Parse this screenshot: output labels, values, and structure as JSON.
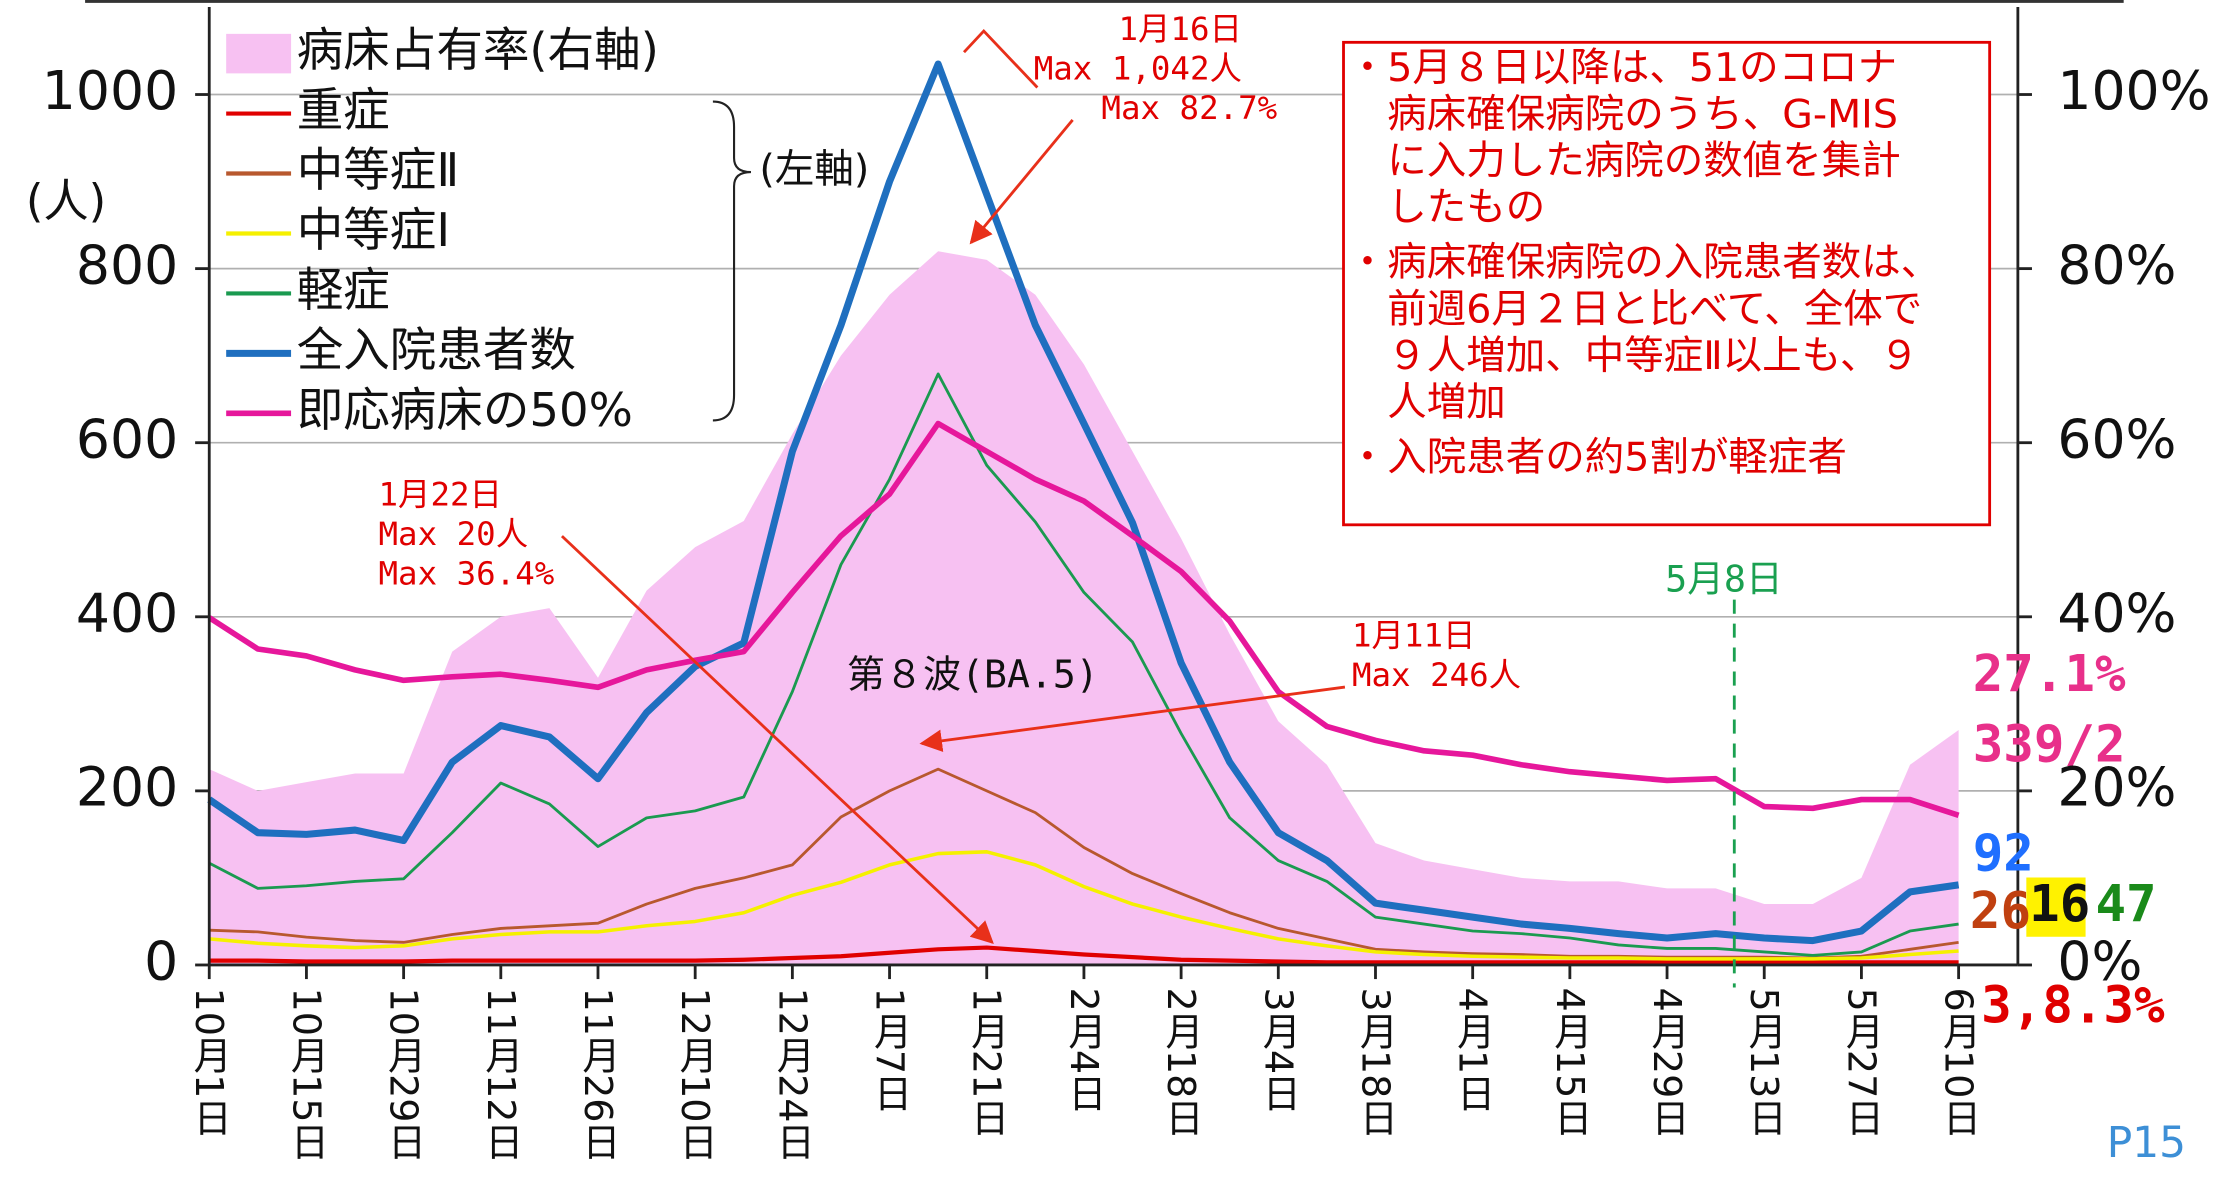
{
  "chart_data": {
    "type": "line",
    "categories": [
      "10月1日",
      null,
      "10月15日",
      null,
      "10月29日",
      null,
      "11月12日",
      null,
      "11月26日",
      null,
      "12月10日",
      null,
      "12月24日",
      null,
      "1月7日",
      null,
      "1月21日",
      null,
      "2月4日",
      null,
      "2月18日",
      null,
      "3月4日",
      null,
      "3月18日",
      null,
      "4月1日",
      null,
      "4月15日",
      null,
      "4月29日",
      null,
      "5月13日",
      null,
      "5月27日",
      null,
      "6月10日"
    ],
    "ylim": [
      0,
      1000
    ],
    "yticks": [
      0,
      200,
      400,
      600,
      800,
      1000
    ],
    "y2lim": [
      0,
      100
    ],
    "y2ticks": [
      {
        "value": 0,
        "label": "0%"
      },
      {
        "value": 20,
        "label": "20%"
      },
      {
        "value": 40,
        "label": "40%"
      },
      {
        "value": 60,
        "label": "60%"
      },
      {
        "value": 80,
        "label": "80%"
      },
      {
        "value": 100,
        "label": "100%"
      }
    ],
    "y_unit": "(人)",
    "left_axis_note": "(左軸)",
    "grid": true,
    "series": [
      {
        "name": "病床占有率(右軸)",
        "kind": "area",
        "axis": "y2",
        "color": "#f7c1f2",
        "values": [
          22.5,
          20,
          21,
          22,
          22,
          36,
          40,
          41,
          33,
          43,
          48,
          51,
          61,
          70,
          77,
          82,
          81,
          77,
          69,
          59,
          49,
          38,
          28,
          23,
          14,
          12,
          11,
          10,
          9.6,
          9.6,
          8.8,
          8.8,
          7,
          7,
          10,
          23,
          27
        ]
      },
      {
        "name": "重症",
        "color": "#e00000",
        "width": 3,
        "values": [
          5,
          5,
          4,
          4,
          4,
          5,
          5,
          5,
          5,
          5,
          5,
          6,
          8,
          10,
          14,
          18,
          20,
          16,
          12,
          9,
          6,
          5,
          4,
          3,
          3,
          3,
          3,
          3,
          3,
          3,
          3,
          3,
          3,
          3,
          3,
          3,
          3
        ]
      },
      {
        "name": "中等症Ⅱ",
        "color": "#b8582e",
        "width": 2,
        "values": [
          40,
          38,
          32,
          28,
          26,
          35,
          42,
          45,
          48,
          70,
          88,
          100,
          115,
          170,
          200,
          225,
          200,
          175,
          135,
          105,
          82,
          60,
          42,
          30,
          18,
          15,
          13,
          12,
          10,
          10,
          9,
          9,
          9,
          8,
          10,
          18,
          26
        ]
      },
      {
        "name": "中等症Ⅰ",
        "color": "#f5f000",
        "width": 2.5,
        "values": [
          30,
          25,
          22,
          20,
          22,
          30,
          35,
          38,
          38,
          45,
          50,
          60,
          80,
          95,
          115,
          128,
          130,
          115,
          90,
          70,
          55,
          42,
          30,
          22,
          15,
          12,
          10,
          9,
          8,
          8,
          7,
          7,
          7,
          7,
          8,
          12,
          16
        ]
      },
      {
        "name": "軽症",
        "color": "#1a9a50",
        "width": 2,
        "values": [
          117,
          88,
          91,
          96,
          99,
          152,
          209,
          185,
          136,
          169,
          177,
          193,
          314,
          460,
          558,
          679,
          574,
          509,
          428,
          371,
          266,
          169,
          120,
          96,
          55,
          47,
          39,
          36,
          31,
          23,
          19,
          19,
          15,
          11,
          15,
          39,
          47
        ]
      },
      {
        "name": "全入院患者数",
        "color": "#1f6fbf",
        "width": 5,
        "values": [
          190,
          152,
          150,
          155,
          143,
          233,
          275,
          262,
          214,
          290,
          343,
          370,
          590,
          735,
          900,
          1035,
          885,
          735,
          622,
          508,
          347,
          233,
          152,
          120,
          71,
          63,
          55,
          47,
          42,
          36,
          31,
          36,
          31,
          28,
          39,
          84,
          92
        ]
      },
      {
        "name": "即応病床の50%",
        "color": "#e6179b",
        "width": 4,
        "values": [
          399,
          363,
          355,
          339,
          327,
          331,
          334,
          327,
          319,
          339,
          350,
          360,
          428,
          493,
          541,
          622,
          590,
          558,
          533,
          493,
          452,
          395,
          314,
          274,
          258,
          246,
          241,
          230,
          222,
          217,
          212,
          214,
          182,
          180,
          190,
          190,
          172
        ]
      }
    ],
    "annotations": [
      {
        "lines": [
          "1月16日",
          "Max 1,042人",
          "Max 82.7%"
        ]
      },
      {
        "lines": [
          "1月22日",
          "Max 20人",
          "Max 36.4%"
        ]
      },
      {
        "lines": [
          "第８波(BA.5)"
        ]
      },
      {
        "lines": [
          "1月11日",
          "Max 246人"
        ]
      },
      {
        "lines": [
          "5月8日"
        ]
      }
    ],
    "notes": [
      [
        "・5月８日以降は、51のコロナ",
        "　病床確保病院のうち、G-MIS",
        "　に入力した病院の数値を集計",
        "　したもの"
      ],
      [
        "・病床確保病院の入院患者数は、",
        "　前週6月２日と比べて、全体で",
        "　９人増加、中等症Ⅱ以上も、９",
        "　人増加"
      ],
      [
        "・入院患者の約5割が軽症者"
      ]
    ],
    "side_labels": [
      "27.1%",
      "339/2",
      "92",
      "26",
      "16",
      "47",
      "3,8.3%"
    ],
    "page_number": "P15"
  }
}
